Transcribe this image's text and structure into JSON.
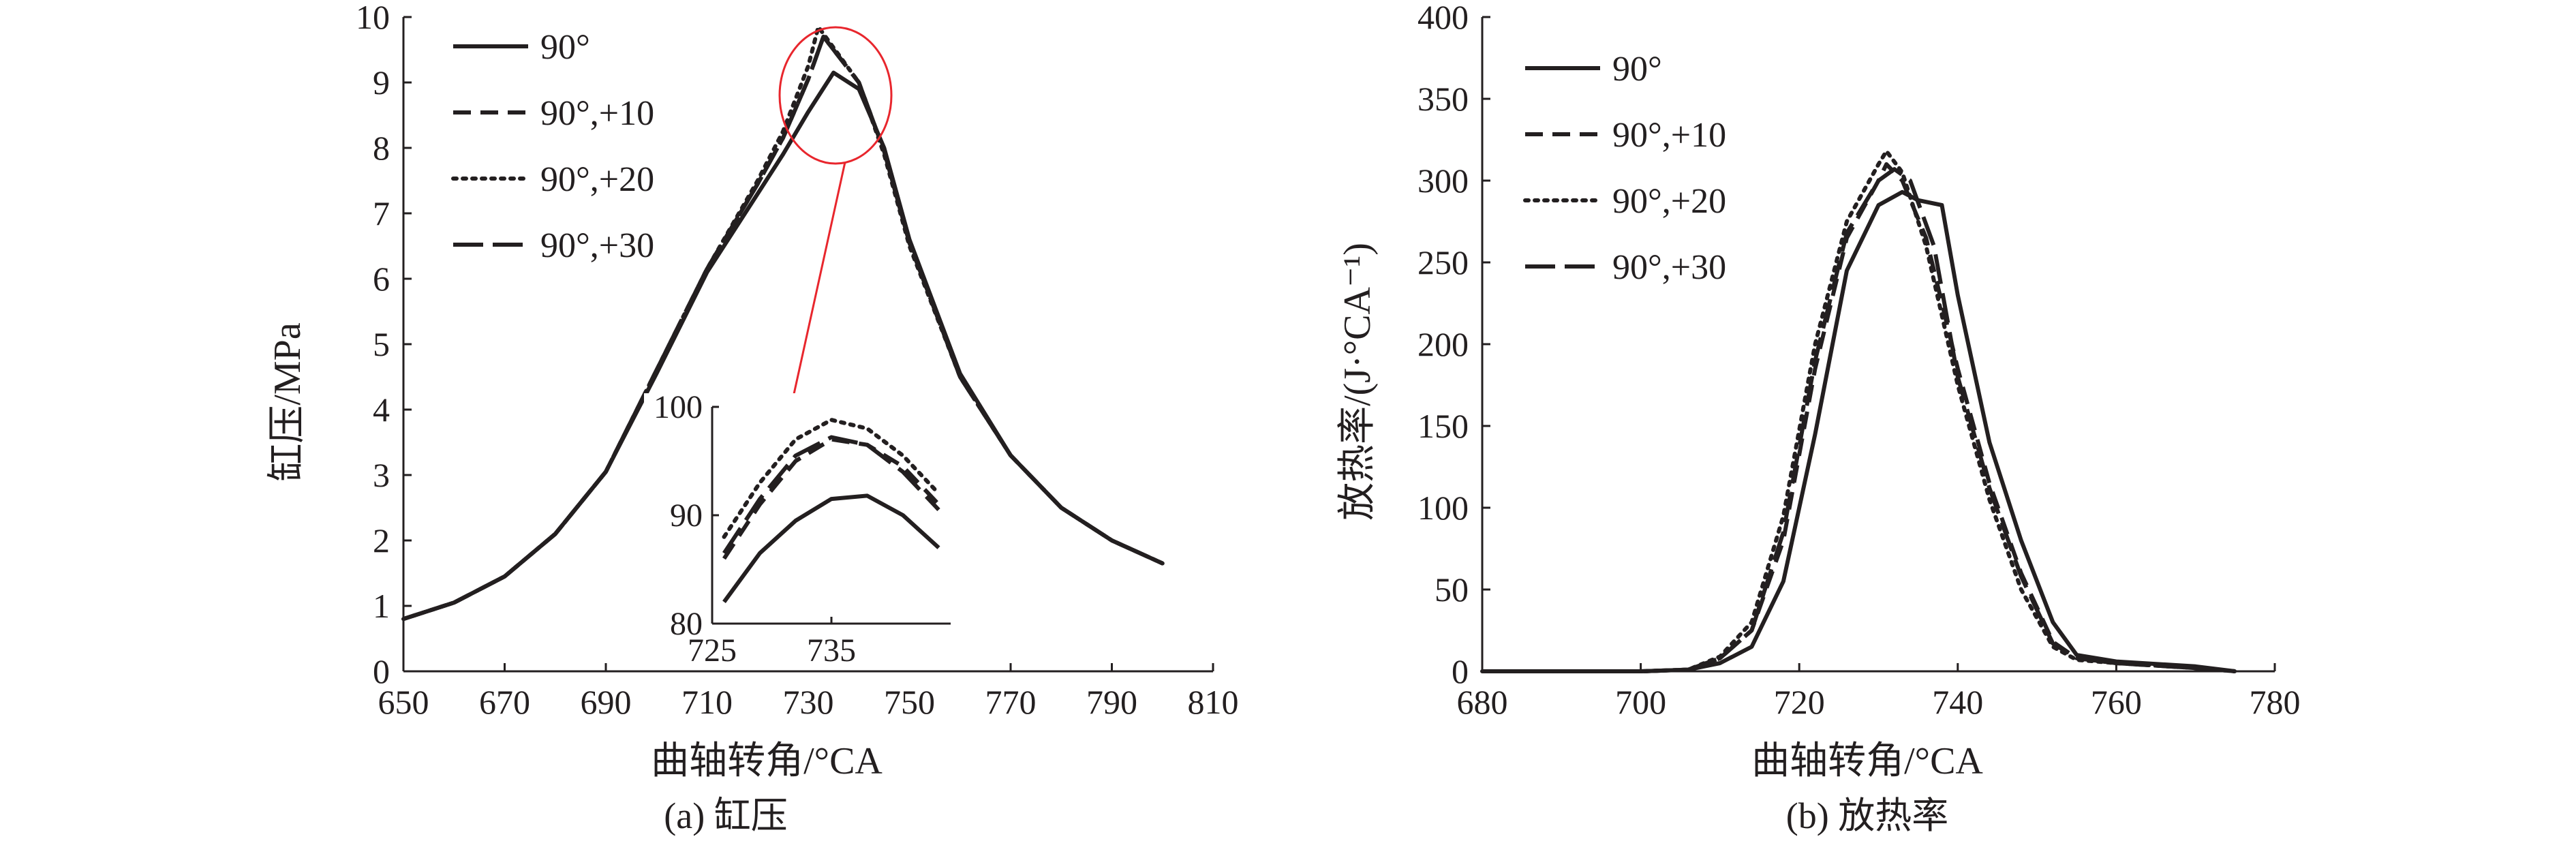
{
  "chart_data": [
    {
      "type": "line",
      "caption": "(a) 缸压",
      "xlabel": "曲轴转角/°CA",
      "ylabel": "缸压/MPa",
      "xlim": [
        650,
        810
      ],
      "ylim": [
        0,
        10
      ],
      "x_ticks": [
        "650",
        "670",
        "690",
        "710",
        "730",
        "750",
        "770",
        "790",
        "810"
      ],
      "y_ticks": [
        "0",
        "1",
        "2",
        "3",
        "4",
        "5",
        "6",
        "7",
        "8",
        "9",
        "10"
      ],
      "legend_position": "top-left",
      "series": [
        {
          "name": "90°",
          "style": "solid",
          "x": [
            650,
            660,
            670,
            680,
            690,
            700,
            710,
            720,
            725,
            730,
            735,
            740,
            745,
            750,
            760,
            770,
            780,
            790,
            800
          ],
          "y": [
            0.8,
            1.05,
            1.45,
            2.1,
            3.05,
            4.55,
            6.1,
            7.3,
            7.9,
            8.55,
            9.15,
            8.9,
            8.0,
            6.6,
            4.55,
            3.3,
            2.5,
            2.0,
            1.65
          ]
        },
        {
          "name": "90°,+10",
          "style": "dashed",
          "x": [
            650,
            660,
            670,
            680,
            690,
            700,
            710,
            720,
            725,
            730,
            733,
            740,
            745,
            750,
            760,
            770,
            780,
            790,
            800
          ],
          "y": [
            0.8,
            1.05,
            1.45,
            2.1,
            3.05,
            4.6,
            6.15,
            7.45,
            8.15,
            9.05,
            9.7,
            9.0,
            7.95,
            6.55,
            4.5,
            3.3,
            2.5,
            2.0,
            1.65
          ]
        },
        {
          "name": "90°,+20",
          "style": "dotted",
          "x": [
            650,
            660,
            670,
            680,
            690,
            700,
            710,
            720,
            725,
            730,
            732,
            740,
            745,
            750,
            760,
            770,
            780,
            790,
            800
          ],
          "y": [
            0.8,
            1.05,
            1.45,
            2.1,
            3.05,
            4.6,
            6.15,
            7.5,
            8.25,
            9.25,
            9.85,
            9.0,
            7.9,
            6.5,
            4.5,
            3.3,
            2.5,
            2.0,
            1.65
          ]
        },
        {
          "name": "90°,+30",
          "style": "long-dash",
          "x": [
            650,
            660,
            670,
            680,
            690,
            700,
            710,
            720,
            725,
            730,
            733,
            740,
            745,
            750,
            760,
            770,
            780,
            790,
            800
          ],
          "y": [
            0.8,
            1.05,
            1.45,
            2.1,
            3.05,
            4.6,
            6.15,
            7.45,
            8.15,
            9.05,
            9.7,
            9.0,
            7.95,
            6.55,
            4.5,
            3.3,
            2.5,
            2.0,
            1.65
          ]
        }
      ],
      "inset": {
        "xlim": [
          725,
          745
        ],
        "ylim": [
          80,
          100
        ],
        "x_ticks": [
          "725",
          "735"
        ],
        "y_ticks": [
          "80",
          "90",
          "100"
        ],
        "series": [
          {
            "name": "90°",
            "x": [
              726,
              729,
              732,
              735,
              738,
              741,
              744
            ],
            "y": [
              82,
              86.5,
              89.5,
              91.5,
              91.8,
              90,
              87
            ]
          },
          {
            "name": "90°,+10",
            "x": [
              726,
              729,
              732,
              735,
              738,
              741,
              744
            ],
            "y": [
              86,
              91,
              95,
              97,
              96.5,
              94.5,
              91
            ]
          },
          {
            "name": "90°,+20",
            "x": [
              726,
              729,
              732,
              735,
              738,
              741,
              744
            ],
            "y": [
              88,
              93,
              97,
              98.8,
              98,
              95.5,
              92
            ]
          },
          {
            "name": "90°,+30",
            "x": [
              726,
              729,
              732,
              735,
              738,
              741,
              744
            ],
            "y": [
              86.5,
              91.5,
              95.5,
              97.2,
              96.5,
              94,
              90.5
            ]
          }
        ]
      }
    },
    {
      "type": "line",
      "caption": "(b) 放热率",
      "xlabel": "曲轴转角/°CA",
      "ylabel": "放热率/(J·°CA⁻¹)",
      "xlim": [
        680,
        780
      ],
      "ylim": [
        0,
        400
      ],
      "x_ticks": [
        "680",
        "700",
        "720",
        "740",
        "760",
        "780"
      ],
      "y_ticks": [
        "0",
        "50",
        "100",
        "150",
        "200",
        "250",
        "300",
        "350",
        "400"
      ],
      "legend_position": "top-left",
      "series": [
        {
          "name": "90°",
          "style": "solid",
          "x": [
            680,
            700,
            706,
            710,
            714,
            718,
            722,
            726,
            730,
            733,
            735,
            738,
            740,
            744,
            748,
            752,
            755,
            760,
            770,
            775
          ],
          "y": [
            0,
            0,
            1,
            5,
            15,
            55,
            145,
            245,
            285,
            293,
            288,
            285,
            230,
            140,
            80,
            30,
            10,
            6,
            3,
            0
          ]
        },
        {
          "name": "90°,+10",
          "style": "dashed",
          "x": [
            680,
            700,
            706,
            710,
            714,
            718,
            722,
            726,
            730,
            731,
            733,
            736,
            740,
            744,
            748,
            752,
            755,
            760,
            770,
            775
          ],
          "y": [
            0,
            0,
            1,
            8,
            25,
            80,
            185,
            265,
            300,
            310,
            300,
            265,
            185,
            115,
            60,
            18,
            8,
            5,
            2,
            0
          ]
        },
        {
          "name": "90°,+20",
          "style": "dotted",
          "x": [
            680,
            700,
            706,
            710,
            714,
            718,
            722,
            726,
            730,
            731,
            733,
            736,
            740,
            744,
            748,
            752,
            755,
            760,
            770,
            775
          ],
          "y": [
            0,
            0,
            1,
            9,
            30,
            95,
            200,
            275,
            310,
            318,
            305,
            260,
            175,
            105,
            50,
            15,
            7,
            5,
            2,
            0
          ]
        },
        {
          "name": "90°,+30",
          "style": "long-dash",
          "x": [
            680,
            700,
            706,
            710,
            714,
            718,
            722,
            726,
            730,
            732,
            734,
            737,
            740,
            744,
            748,
            752,
            755,
            760,
            770,
            775
          ],
          "y": [
            0,
            0,
            1,
            8,
            25,
            85,
            190,
            268,
            300,
            307,
            300,
            260,
            180,
            112,
            58,
            17,
            8,
            5,
            2,
            0
          ]
        }
      ]
    }
  ]
}
